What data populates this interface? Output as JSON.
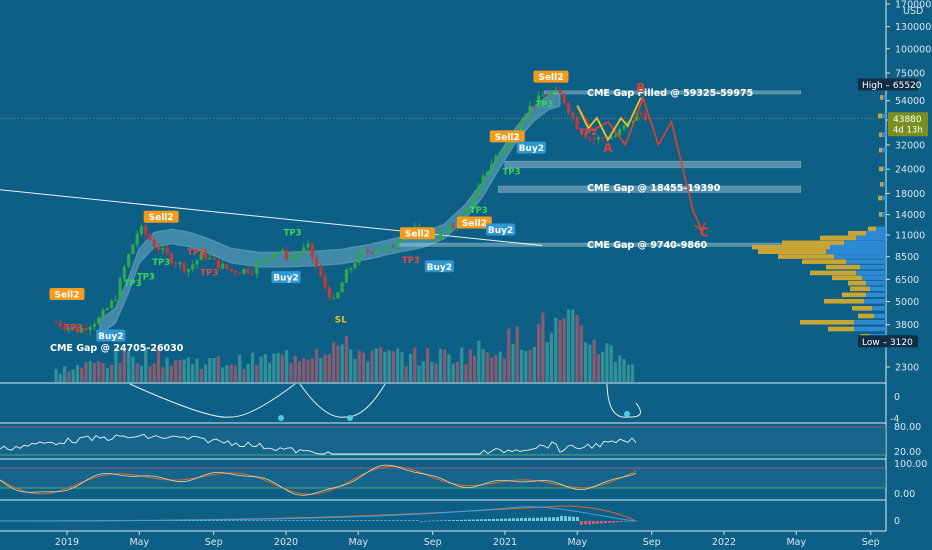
{
  "colors": {
    "background": "#0d5f85",
    "candle_up": "#2ea84a",
    "candle_down": "#c0393b",
    "vol_up": "#3a9a9a",
    "vol_down": "#a05b6c",
    "band": "#9fd9ee",
    "sell_tag": "#f29b1d",
    "buy_tag": "#2f97d2",
    "tp_green": "#3ed15f",
    "tp_red": "#e04a4a",
    "wave": "#e0412f",
    "wave_yellow": "#e7c22b",
    "profile_yellow": "#c9a534",
    "profile_blue": "#2f8fdc"
  },
  "header": {
    "currency": "USD"
  },
  "chart_data": {
    "type": "candlestick",
    "y_scale": "log",
    "price_ticks": [
      "170000",
      "130000",
      "100000",
      "75000",
      "54000",
      "43000",
      "32000",
      "24000",
      "18000",
      "14000",
      "11000",
      "8500",
      "6500",
      "5000",
      "3800",
      "2300"
    ],
    "time_ticks": [
      "2019",
      "May",
      "Sep",
      "2020",
      "May",
      "Sep",
      "2021",
      "May",
      "Sep",
      "2022",
      "May",
      "Sep"
    ],
    "markers": {
      "high_label": "High",
      "high_value": "65520",
      "low_label": "Low",
      "low_value": "3120",
      "last_price": "43880",
      "countdown": "4d 13h"
    },
    "price_path": [
      [
        -0.05,
        3900
      ],
      [
        0,
        3700
      ],
      [
        0.05,
        3550
      ],
      [
        0.1,
        3800
      ],
      [
        0.15,
        4100
      ],
      [
        0.22,
        5200
      ],
      [
        0.27,
        8000
      ],
      [
        0.33,
        12000
      ],
      [
        0.4,
        9800
      ],
      [
        0.48,
        8200
      ],
      [
        0.55,
        7300
      ],
      [
        0.62,
        8800
      ],
      [
        0.68,
        7800
      ],
      [
        0.75,
        7200
      ],
      [
        0.85,
        7300
      ],
      [
        0.95,
        9200
      ],
      [
        1.02,
        8400
      ],
      [
        1.1,
        9500
      ],
      [
        1.17,
        6200
      ],
      [
        1.22,
        4900
      ],
      [
        1.27,
        6800
      ],
      [
        1.33,
        8600
      ],
      [
        1.4,
        9400
      ],
      [
        1.47,
        9200
      ],
      [
        1.53,
        11200
      ],
      [
        1.6,
        11700
      ],
      [
        1.67,
        10600
      ],
      [
        1.73,
        11400
      ],
      [
        1.8,
        13400
      ],
      [
        1.87,
        18000
      ],
      [
        1.92,
        24000
      ],
      [
        1.97,
        29000
      ],
      [
        2.03,
        34000
      ],
      [
        2.08,
        46000
      ],
      [
        2.13,
        52000
      ],
      [
        2.18,
        58000
      ],
      [
        2.23,
        59000
      ],
      [
        2.26,
        57000
      ],
      [
        2.29,
        49000
      ],
      [
        2.33,
        40000
      ],
      [
        2.37,
        36000
      ],
      [
        2.4,
        34000
      ],
      [
        2.45,
        35000
      ],
      [
        2.5,
        35500
      ],
      [
        2.55,
        40000
      ],
      [
        2.6,
        45500
      ],
      [
        2.63,
        46000
      ],
      [
        2.66,
        43880
      ]
    ],
    "volume_path": [
      [
        -0.05,
        0.2
      ],
      [
        0.1,
        0.3
      ],
      [
        0.3,
        0.5
      ],
      [
        0.5,
        0.4
      ],
      [
        0.7,
        0.35
      ],
      [
        0.9,
        0.4
      ],
      [
        1.1,
        0.55
      ],
      [
        1.2,
        0.7
      ],
      [
        1.4,
        0.5
      ],
      [
        1.6,
        0.45
      ],
      [
        1.8,
        0.5
      ],
      [
        2.0,
        0.7
      ],
      [
        2.15,
        0.95
      ],
      [
        2.3,
        1.0
      ],
      [
        2.45,
        0.65
      ],
      [
        2.6,
        0.35
      ]
    ],
    "band": [
      [
        0.15,
        3700
      ],
      [
        0.22,
        4200
      ],
      [
        0.28,
        6000
      ],
      [
        0.33,
        8600
      ],
      [
        0.4,
        10400
      ],
      [
        0.48,
        10800
      ],
      [
        0.56,
        10400
      ],
      [
        0.65,
        9600
      ],
      [
        0.75,
        8600
      ],
      [
        0.88,
        8200
      ],
      [
        1.0,
        8200
      ],
      [
        1.12,
        8300
      ],
      [
        1.25,
        8500
      ],
      [
        1.38,
        9000
      ],
      [
        1.5,
        9700
      ],
      [
        1.62,
        10300
      ],
      [
        1.72,
        11400
      ],
      [
        1.82,
        14500
      ],
      [
        1.9,
        19000
      ],
      [
        1.98,
        27000
      ],
      [
        2.05,
        36000
      ],
      [
        2.13,
        46000
      ],
      [
        2.2,
        53000
      ],
      [
        2.25,
        55000
      ]
    ],
    "wave_path": [
      [
        2.33,
        51000
      ],
      [
        2.4,
        38000
      ],
      [
        2.47,
        42000
      ],
      [
        2.55,
        32000
      ],
      [
        2.63,
        56000
      ],
      [
        2.7,
        32000
      ],
      [
        2.76,
        42000
      ],
      [
        2.86,
        14500
      ],
      [
        2.9,
        11600
      ]
    ],
    "wave_yellow_path": [
      [
        2.33,
        51000
      ],
      [
        2.38,
        39000
      ],
      [
        2.42,
        44000
      ],
      [
        2.47,
        34000
      ],
      [
        2.53,
        44000
      ],
      [
        2.56,
        40000
      ],
      [
        2.62,
        56000
      ]
    ],
    "wave_labels": [
      {
        "text": "A",
        "t": 2.47,
        "v": 29500
      },
      {
        "text": "B",
        "t": 2.62,
        "v": 60000
      },
      {
        "text": "C",
        "t": 2.91,
        "v": 10800
      }
    ],
    "trendline": [
      [
        -0.05,
        18800
      ],
      [
        2.95,
        7700
      ]
    ],
    "gap_zones": [
      {
        "label": "CME Gap Filled @ 59325-59975",
        "low": 59325,
        "high": 59975,
        "t0": 2.18,
        "t1": 3.35
      },
      {
        "label": "CME Gap @ 18455-19390",
        "low": 18455,
        "high": 19390,
        "t0": 1.97,
        "t1": 3.35
      },
      {
        "label": "CME Gap @ 9740-9860",
        "low": 9740,
        "high": 9860,
        "t0": 1.52,
        "t1": 3.35
      },
      {
        "label": "CME Gap @ 24705-26030",
        "low": 24705,
        "high": 26030,
        "t0": 2.0,
        "t1": 3.35
      }
    ],
    "signals": [
      {
        "type": "sell",
        "text": "Sell2",
        "t": 0.0,
        "v": 5400
      },
      {
        "type": "sell",
        "text": "Sell2",
        "t": 0.43,
        "v": 13500
      },
      {
        "type": "sell",
        "text": "Sell2",
        "t": 1.6,
        "v": 11100
      },
      {
        "type": "sell",
        "text": "Sell2",
        "t": 1.86,
        "v": 12600
      },
      {
        "type": "sell",
        "text": "Sell2",
        "t": 2.01,
        "v": 35000
      },
      {
        "type": "sell",
        "text": "Sell2",
        "t": 2.21,
        "v": 71000
      },
      {
        "type": "buy",
        "text": "Buy2",
        "t": 0.2,
        "v": 3300
      },
      {
        "type": "buy",
        "text": "Buy2",
        "t": 1.0,
        "v": 6600
      },
      {
        "type": "buy",
        "text": "Buy2",
        "t": 1.7,
        "v": 7500
      },
      {
        "type": "buy",
        "text": "Buy2",
        "t": 1.98,
        "v": 11600
      },
      {
        "type": "buy",
        "text": "Buy2",
        "t": 2.12,
        "v": 30600
      }
    ],
    "tp_labels": [
      {
        "color": "green",
        "text": "TP3",
        "t": 0.3,
        "v": 6000
      },
      {
        "color": "green",
        "text": "TP3",
        "t": 0.36,
        "v": 6500
      },
      {
        "color": "green",
        "text": "TP3",
        "t": 0.43,
        "v": 7700
      },
      {
        "color": "green",
        "text": "TP3",
        "t": 1.03,
        "v": 10900
      },
      {
        "color": "green",
        "text": "TP3",
        "t": 1.88,
        "v": 14300
      },
      {
        "color": "green",
        "text": "TP3",
        "t": 2.03,
        "v": 22500
      },
      {
        "color": "green",
        "text": "TP3",
        "t": 2.18,
        "v": 50000
      },
      {
        "color": "red",
        "text": "TP3",
        "t": 0.03,
        "v": 3550
      },
      {
        "color": "red",
        "text": "TP2",
        "t": 0.59,
        "v": 8700
      },
      {
        "color": "red",
        "text": "TP3",
        "t": 0.65,
        "v": 6800
      },
      {
        "color": "red",
        "text": "TP3",
        "t": 1.57,
        "v": 7900
      },
      {
        "color": "red",
        "text": "TP2",
        "t": 2.38,
        "v": 36000
      }
    ],
    "sl_label": {
      "text": "SL",
      "t": 1.25,
      "v": 3900
    },
    "volume_profile": [
      {
        "price": 11800,
        "yellow": 8,
        "blue": 10
      },
      {
        "price": 11200,
        "yellow": 18,
        "blue": 20
      },
      {
        "price": 10600,
        "yellow": 36,
        "blue": 30
      },
      {
        "price": 10000,
        "yellow": 62,
        "blue": 42
      },
      {
        "price": 9500,
        "yellow": 78,
        "blue": 56
      },
      {
        "price": 9000,
        "yellow": 68,
        "blue": 60
      },
      {
        "price": 8500,
        "yellow": 56,
        "blue": 52
      },
      {
        "price": 8000,
        "yellow": 44,
        "blue": 40
      },
      {
        "price": 7500,
        "yellow": 34,
        "blue": 26
      },
      {
        "price": 7000,
        "yellow": 46,
        "blue": 30
      },
      {
        "price": 6600,
        "yellow": 30,
        "blue": 24
      },
      {
        "price": 6200,
        "yellow": 18,
        "blue": 20
      },
      {
        "price": 5800,
        "yellow": 20,
        "blue": 16
      },
      {
        "price": 5400,
        "yellow": 24,
        "blue": 20
      },
      {
        "price": 5000,
        "yellow": 40,
        "blue": 22
      },
      {
        "price": 4600,
        "yellow": 20,
        "blue": 14
      },
      {
        "price": 4200,
        "yellow": 16,
        "blue": 12
      },
      {
        "price": 3900,
        "yellow": 54,
        "blue": 32
      },
      {
        "price": 3600,
        "yellow": 26,
        "blue": 32
      },
      {
        "price": 3300,
        "yellow": 10,
        "blue": 16
      },
      {
        "price": 14000,
        "yellow": 3,
        "blue": 4
      },
      {
        "price": 17000,
        "yellow": 4,
        "blue": 4
      },
      {
        "price": 20000,
        "yellow": 3,
        "blue": 3
      },
      {
        "price": 24000,
        "yellow": 4,
        "blue": 3
      },
      {
        "price": 30000,
        "yellow": 3,
        "blue": 4
      },
      {
        "price": 36000,
        "yellow": 3,
        "blue": 4
      },
      {
        "price": 45000,
        "yellow": 4,
        "blue": 4
      },
      {
        "price": 56000,
        "yellow": 3,
        "blue": 3
      }
    ]
  },
  "panes": {
    "osc1": {
      "ticks": [
        "0",
        "-4"
      ]
    },
    "rsi": {
      "ticks": [
        "80.00",
        "20.00"
      ]
    },
    "stoch": {
      "ticks": [
        "100.00",
        "0.00"
      ]
    },
    "macd": {
      "ticks": [
        "0"
      ]
    }
  }
}
